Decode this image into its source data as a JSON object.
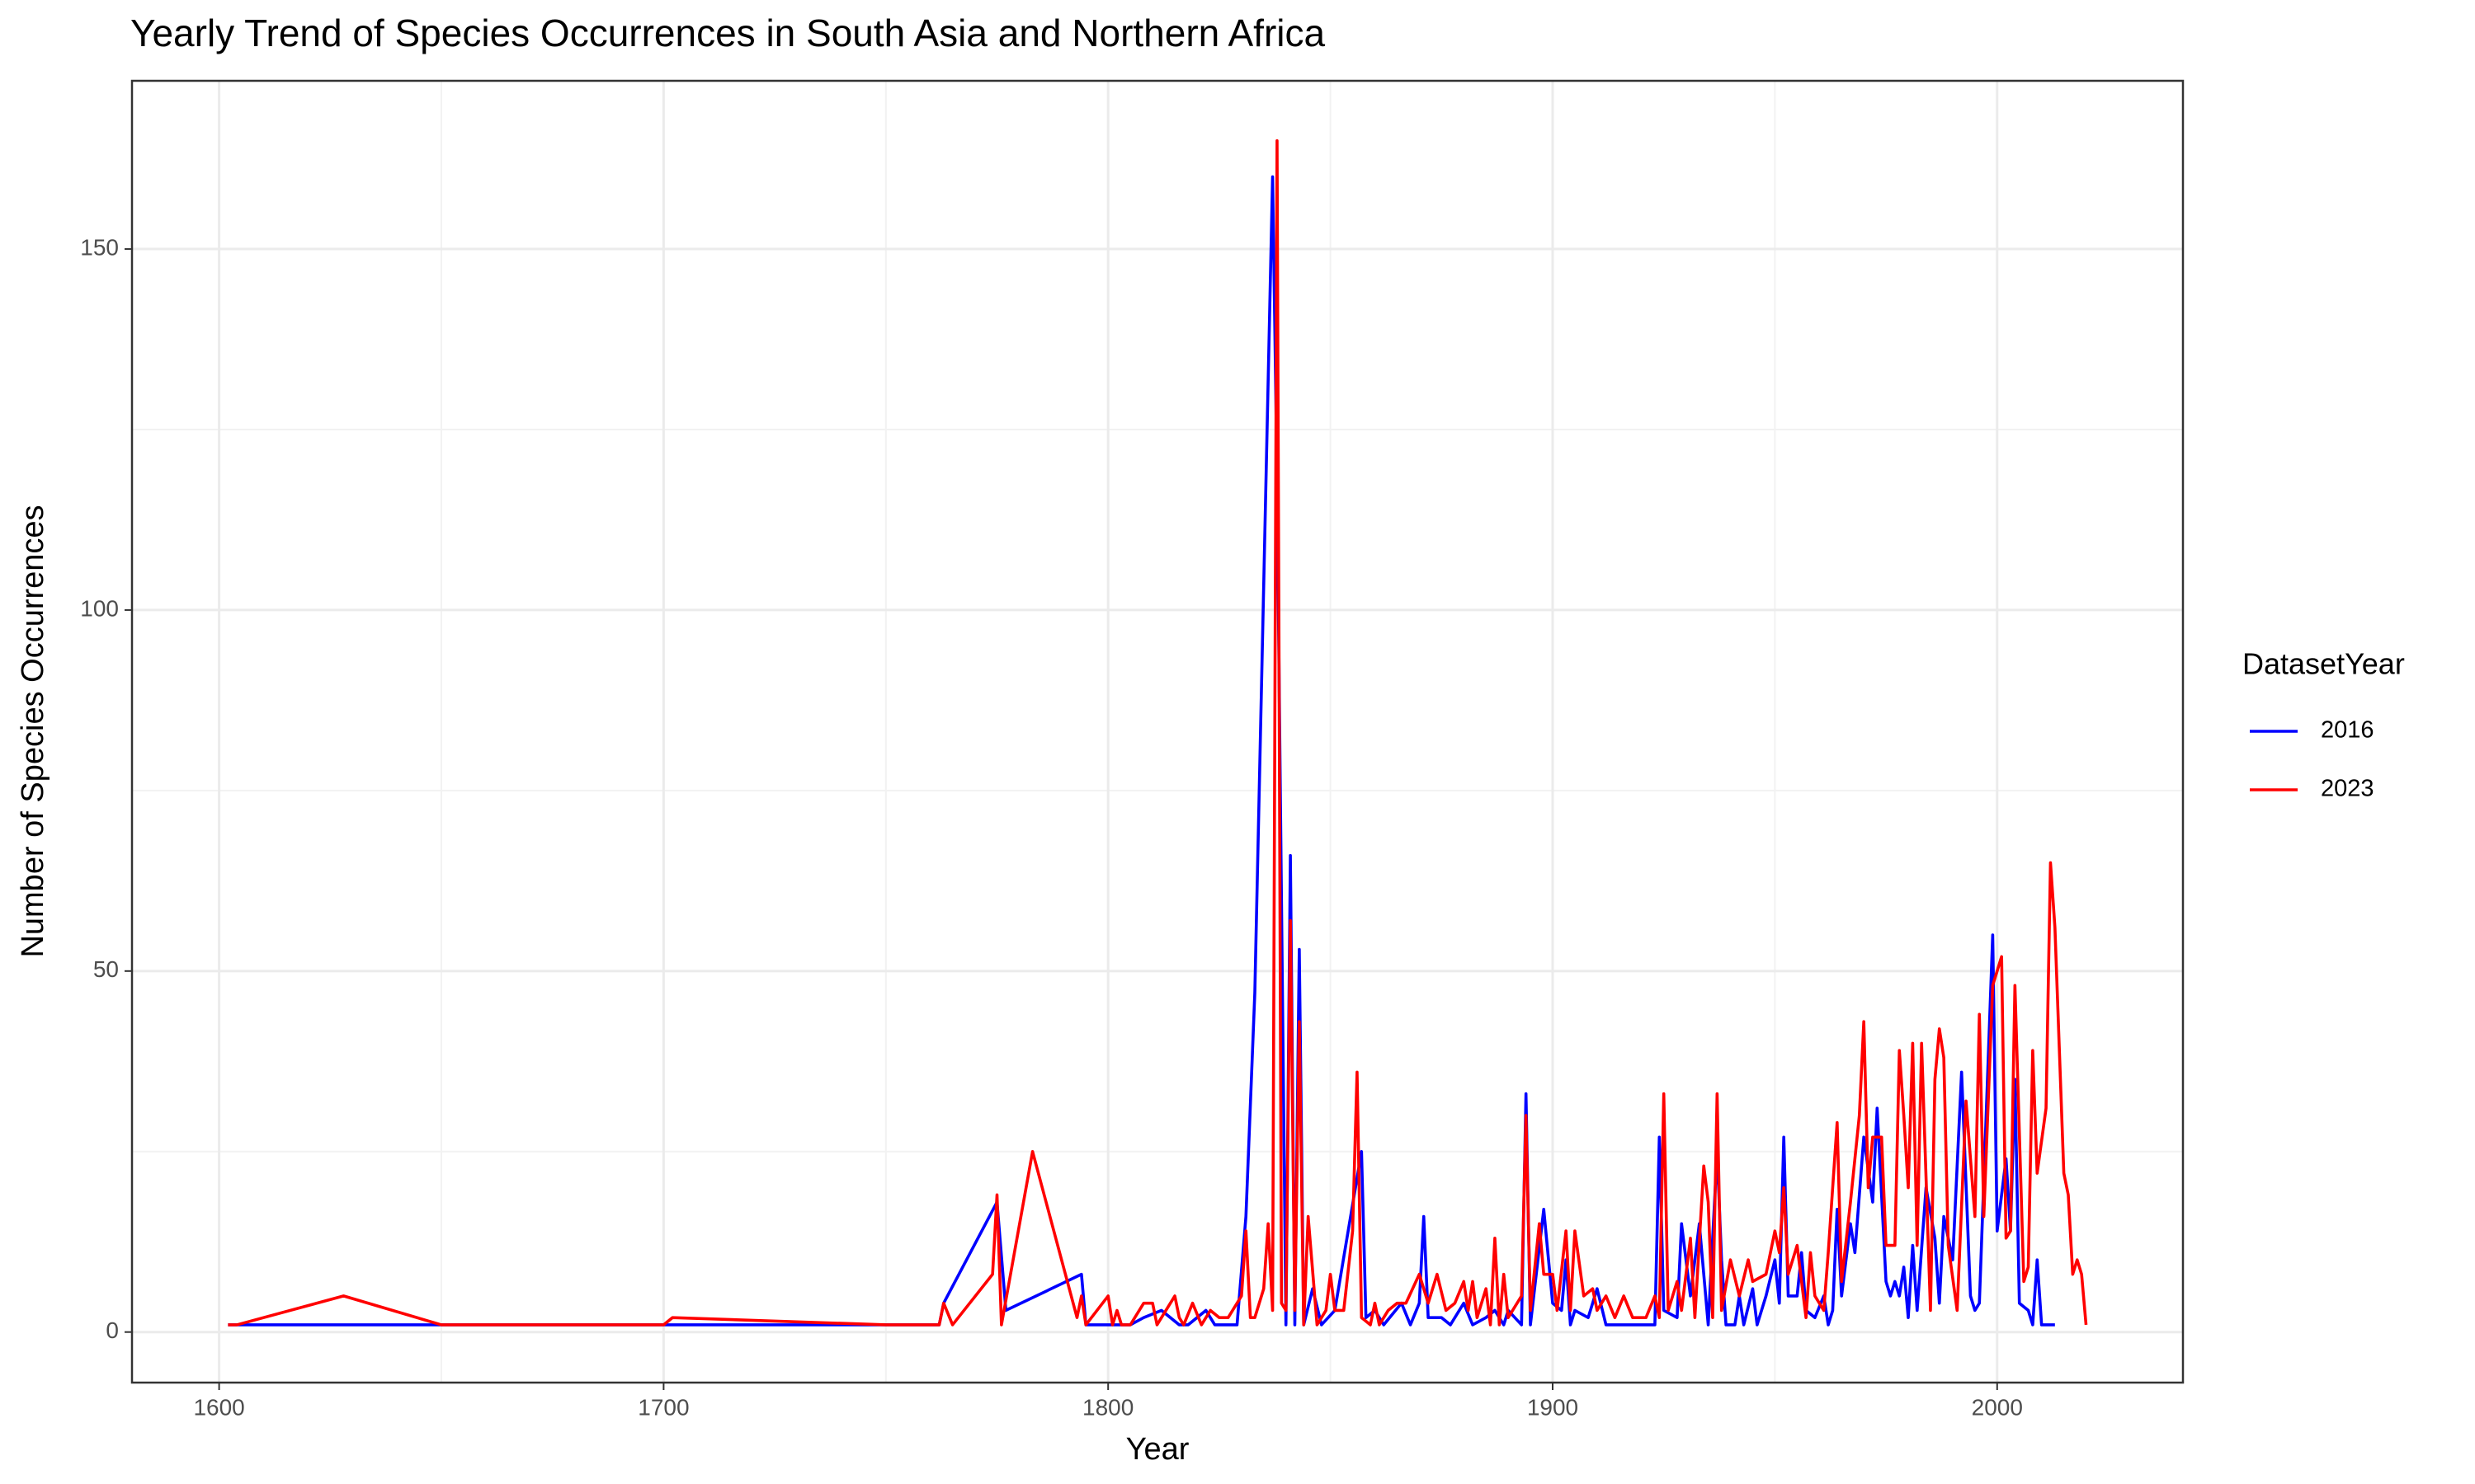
{
  "chart_data": {
    "type": "line",
    "title": "Yearly Trend of Species Occurrences in South Asia and Northern Africa",
    "x_label": "Year",
    "y_label": "Number of Species Occurrences",
    "legend_title": "DatasetYear",
    "legend": "right",
    "grid": true,
    "xlim": [
      1580.4,
      2041.8
    ],
    "xticks": [
      1600,
      1700,
      1800,
      1900,
      2000
    ],
    "ylim": [
      -7,
      173.3
    ],
    "yticks": [
      0,
      50,
      100,
      150
    ],
    "series": [
      {
        "name": "2016",
        "color": "#0000ff",
        "x": [
          1602,
          1650,
          1700,
          1750,
          1762,
          1763,
          1775,
          1777,
          1794,
          1795,
          1800,
          1803,
          1805,
          1808,
          1812,
          1816,
          1818,
          1822,
          1824,
          1829,
          1831,
          1833,
          1837,
          1838,
          1840,
          1841,
          1842,
          1843,
          1844,
          1846,
          1848,
          1851,
          1857,
          1858,
          1860,
          1862,
          1866,
          1868,
          1870,
          1871,
          1872,
          1875,
          1877,
          1880,
          1882,
          1885,
          1887,
          1889,
          1890,
          1893,
          1894,
          1895,
          1898,
          1900,
          1902,
          1903,
          1904,
          1905,
          1908,
          1910,
          1912,
          1920,
          1923,
          1924,
          1925,
          1928,
          1929,
          1931,
          1933,
          1935,
          1937,
          1938,
          1939,
          1941,
          1942,
          1943,
          1945,
          1946,
          1948,
          1950,
          1951,
          1952,
          1953,
          1955,
          1956,
          1957,
          1959,
          1961,
          1962,
          1963,
          1964,
          1965,
          1967,
          1968,
          1970,
          1972,
          1973,
          1975,
          1976,
          1977,
          1978,
          1979,
          1980,
          1981,
          1982,
          1984,
          1986,
          1987,
          1988,
          1990,
          1992,
          1994,
          1995,
          1996,
          1999,
          2000,
          2002,
          2003,
          2004,
          2005,
          2007,
          2008,
          2009,
          2010,
          2013
        ],
        "values": [
          1,
          1,
          1,
          1,
          1,
          4,
          18,
          3,
          8,
          1,
          1,
          1,
          1,
          2,
          3,
          1,
          1,
          3,
          1,
          1,
          16,
          47,
          160,
          118,
          1,
          66,
          1,
          53,
          1,
          6,
          1,
          3,
          25,
          2,
          3,
          1,
          4,
          1,
          4,
          16,
          2,
          2,
          1,
          4,
          1,
          2,
          3,
          1,
          3,
          1,
          33,
          1,
          17,
          4,
          3,
          10,
          1,
          3,
          2,
          6,
          1,
          1,
          1,
          27,
          3,
          2,
          15,
          5,
          15,
          1,
          25,
          10,
          1,
          1,
          5,
          1,
          6,
          1,
          5,
          10,
          4,
          27,
          5,
          5,
          11,
          3,
          2,
          5,
          1,
          3,
          17,
          5,
          15,
          11,
          27,
          18,
          31,
          7,
          5,
          7,
          5,
          9,
          2,
          12,
          3,
          20,
          13,
          4,
          16,
          10,
          36,
          5,
          3,
          4,
          55,
          14,
          24,
          14,
          35,
          4,
          3,
          1,
          10,
          1,
          1
        ]
      },
      {
        "name": "2023",
        "color": "#ff0000",
        "x": [
          1602,
          1604,
          1628,
          1650,
          1700,
          1702,
          1750,
          1762,
          1763,
          1765,
          1774,
          1775,
          1776,
          1783,
          1793,
          1794,
          1795,
          1800,
          1801,
          1802,
          1803,
          1805,
          1808,
          1810,
          1811,
          1815,
          1816,
          1817,
          1819,
          1821,
          1823,
          1825,
          1827,
          1830,
          1831,
          1832,
          1833,
          1835,
          1836,
          1837,
          1838,
          1839,
          1840,
          1841,
          1842,
          1843,
          1844,
          1845,
          1847,
          1849,
          1850,
          1851,
          1853,
          1855,
          1856,
          1857,
          1859,
          1860,
          1861,
          1863,
          1865,
          1867,
          1870,
          1872,
          1874,
          1876,
          1878,
          1880,
          1881,
          1882,
          1883,
          1885,
          1886,
          1887,
          1888,
          1889,
          1890,
          1893,
          1894,
          1895,
          1897,
          1898,
          1900,
          1901,
          1903,
          1904,
          1905,
          1907,
          1909,
          1910,
          1912,
          1914,
          1916,
          1918,
          1921,
          1923,
          1924,
          1925,
          1926,
          1928,
          1929,
          1931,
          1932,
          1934,
          1935,
          1936,
          1937,
          1938,
          1940,
          1942,
          1944,
          1945,
          1948,
          1950,
          1951,
          1952,
          1953,
          1955,
          1957,
          1958,
          1959,
          1961,
          1962,
          1964,
          1965,
          1967,
          1969,
          1970,
          1971,
          1972,
          1974,
          1975,
          1977,
          1978,
          1979,
          1980,
          1981,
          1982,
          1983,
          1985,
          1986,
          1987,
          1988,
          1989,
          1991,
          1993,
          1995,
          1996,
          1997,
          1999,
          2001,
          2002,
          2003,
          2004,
          2006,
          2007,
          2008,
          2009,
          2011,
          2012,
          2013,
          2015,
          2016,
          2017,
          2018,
          2019,
          2020
        ],
        "values": [
          1,
          1,
          5,
          1,
          1,
          2,
          1,
          1,
          4,
          1,
          8,
          19,
          1,
          25,
          2,
          5,
          1,
          5,
          1,
          3,
          1,
          1,
          4,
          4,
          1,
          5,
          2,
          1,
          4,
          1,
          3,
          2,
          2,
          5,
          14,
          2,
          2,
          6,
          15,
          3,
          165,
          4,
          3,
          57,
          3,
          43,
          1,
          16,
          1,
          3,
          8,
          3,
          3,
          14,
          36,
          2,
          1,
          4,
          1,
          3,
          4,
          4,
          8,
          4,
          8,
          3,
          4,
          7,
          3,
          7,
          2,
          6,
          1,
          13,
          1,
          8,
          2,
          5,
          30,
          3,
          15,
          8,
          8,
          3,
          14,
          3,
          14,
          5,
          6,
          3,
          5,
          2,
          5,
          2,
          2,
          5,
          2,
          33,
          3,
          7,
          3,
          13,
          2,
          23,
          18,
          2,
          33,
          3,
          10,
          5,
          10,
          7,
          8,
          14,
          11,
          20,
          8,
          12,
          2,
          11,
          5,
          3,
          11,
          29,
          7,
          18,
          30,
          43,
          20,
          27,
          27,
          12,
          12,
          39,
          30,
          20,
          40,
          12,
          40,
          3,
          35,
          42,
          38,
          12,
          3,
          32,
          16,
          44,
          16,
          48,
          52,
          13,
          14,
          48,
          7,
          9,
          39,
          22,
          31,
          65,
          56,
          22,
          19,
          8,
          10,
          8,
          1
        ]
      }
    ]
  }
}
